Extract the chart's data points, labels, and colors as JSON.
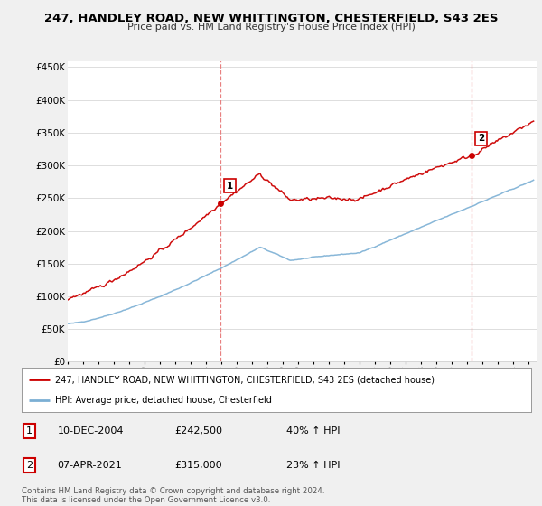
{
  "title": "247, HANDLEY ROAD, NEW WHITTINGTON, CHESTERFIELD, S43 2ES",
  "subtitle": "Price paid vs. HM Land Registry's House Price Index (HPI)",
  "ylim": [
    0,
    460000
  ],
  "yticks": [
    0,
    50000,
    100000,
    150000,
    200000,
    250000,
    300000,
    350000,
    400000,
    450000
  ],
  "ytick_labels": [
    "£0",
    "£50K",
    "£100K",
    "£150K",
    "£200K",
    "£250K",
    "£300K",
    "£350K",
    "£400K",
    "£450K"
  ],
  "sale1_date_num": 2004.94,
  "sale1_price": 242500,
  "sale1_label": "1",
  "sale1_date_str": "10-DEC-2004",
  "sale1_price_str": "£242,500",
  "sale1_pct": "40% ↑ HPI",
  "sale2_date_num": 2021.27,
  "sale2_price": 315000,
  "sale2_label": "2",
  "sale2_date_str": "07-APR-2021",
  "sale2_price_str": "£315,000",
  "sale2_pct": "23% ↑ HPI",
  "property_color": "#cc0000",
  "hpi_color": "#7bafd4",
  "vline_color": "#e88080",
  "legend_property": "247, HANDLEY ROAD, NEW WHITTINGTON, CHESTERFIELD, S43 2ES (detached house)",
  "legend_hpi": "HPI: Average price, detached house, Chesterfield",
  "footer": "Contains HM Land Registry data © Crown copyright and database right 2024.\nThis data is licensed under the Open Government Licence v3.0.",
  "background_color": "#f0f0f0",
  "plot_bg_color": "#ffffff"
}
